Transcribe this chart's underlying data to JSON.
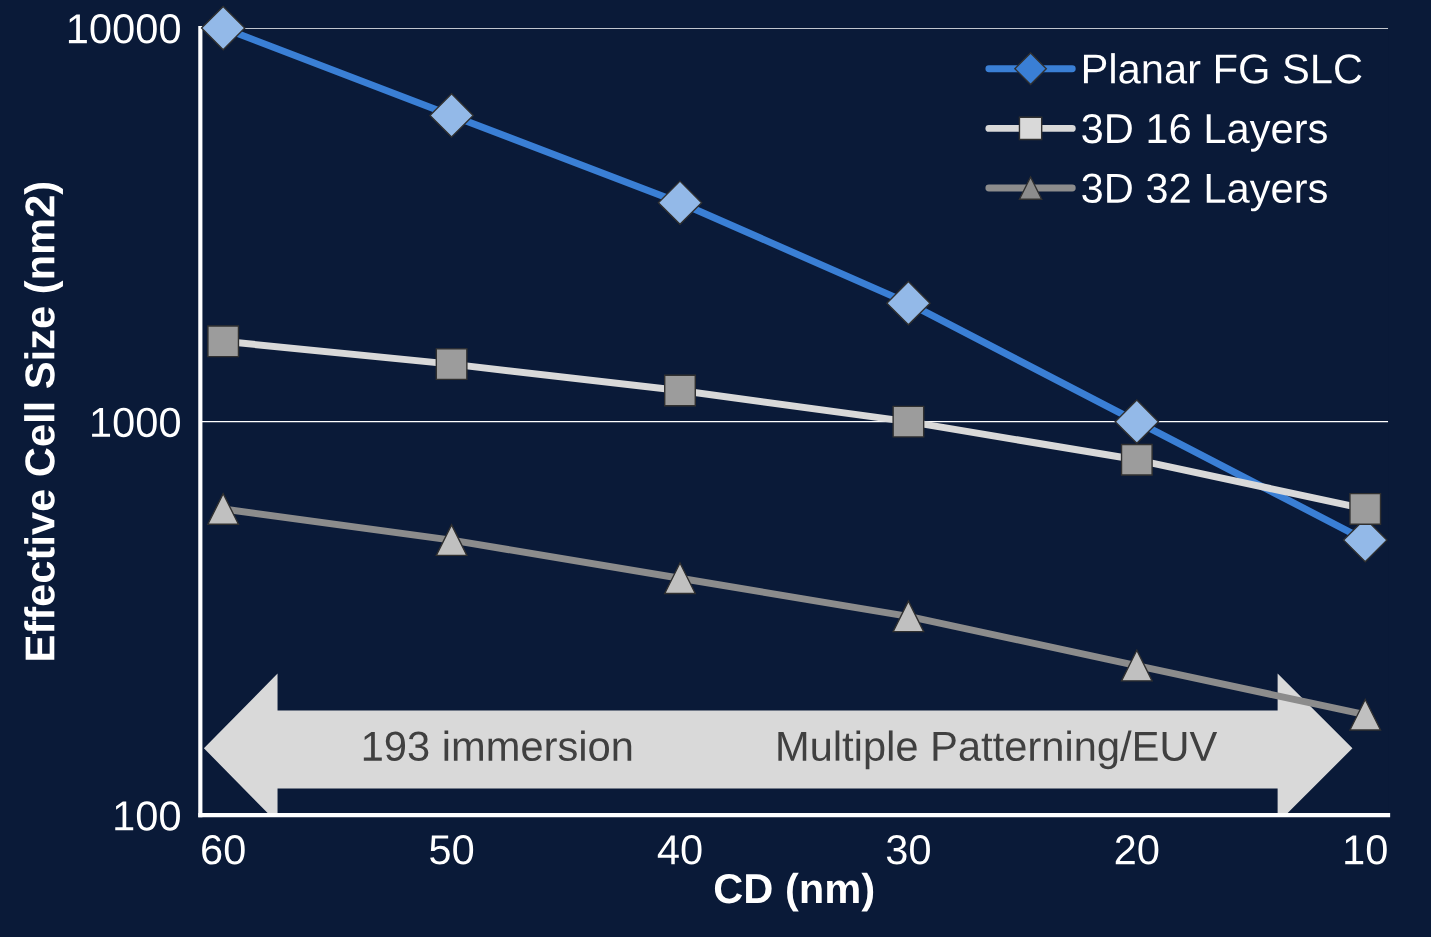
{
  "chart_data": {
    "type": "line",
    "xlabel": "CD (nm)",
    "ylabel": "Effective Cell Size (nm2)",
    "x": [
      60,
      50,
      40,
      30,
      20,
      10
    ],
    "series": [
      {
        "name": "Planar FG SLC",
        "color": "#3a7fd5",
        "marker": "diamond",
        "values": [
          10000,
          6000,
          3600,
          2000,
          1000,
          500
        ]
      },
      {
        "name": "3D 16 Layers",
        "color": "#d9d9d9",
        "marker": "square",
        "values": [
          1600,
          1400,
          1200,
          1000,
          800,
          600
        ]
      },
      {
        "name": "3D 32 Layers",
        "color": "#8c8c8c",
        "marker": "triangle",
        "values": [
          600,
          500,
          400,
          320,
          240,
          180
        ]
      }
    ],
    "log": "y",
    "xlim": [
      61,
      9
    ],
    "xticks": [
      60,
      50,
      40,
      30,
      20,
      10
    ],
    "ylim": [
      100,
      10000
    ],
    "yticks": [
      100,
      1000,
      10000
    ],
    "grid": "y",
    "legend": "top right",
    "annotations": [
      "193 immersion",
      "Multiple Patterning/EUV"
    ]
  }
}
